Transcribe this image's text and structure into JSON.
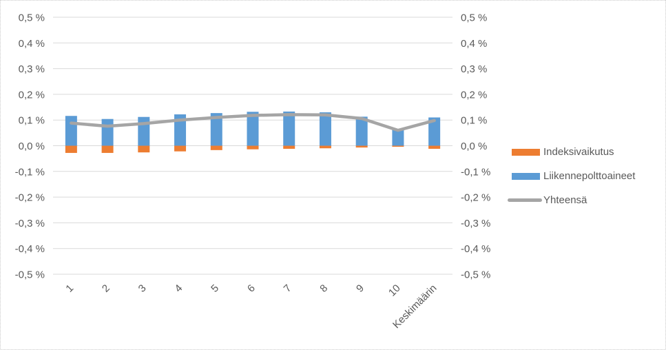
{
  "chart_data": {
    "type": "combo",
    "subtype": "stacked-bar-with-line",
    "title": "",
    "xlabel": "",
    "ylabel": "",
    "unit": "%",
    "number_format": "comma-decimal with space before %",
    "categories": [
      "1",
      "2",
      "3",
      "4",
      "5",
      "6",
      "7",
      "8",
      "9",
      "10",
      "Keskimäärin"
    ],
    "series": [
      {
        "name": "Indeksivaikutus",
        "type": "bar",
        "color": "#ED7D31",
        "values": [
          -0.028,
          -0.028,
          -0.026,
          -0.022,
          -0.017,
          -0.014,
          -0.012,
          -0.01,
          -0.007,
          -0.004,
          -0.012
        ]
      },
      {
        "name": "Liikennepolttoaineet",
        "type": "bar",
        "color": "#5B9BD5",
        "values": [
          0.116,
          0.104,
          0.112,
          0.122,
          0.127,
          0.132,
          0.133,
          0.13,
          0.113,
          0.064,
          0.11
        ]
      },
      {
        "name": "Yhteensä",
        "type": "line",
        "color": "#A5A5A5",
        "values": [
          0.088,
          0.076,
          0.086,
          0.1,
          0.11,
          0.118,
          0.121,
          0.12,
          0.106,
          0.06,
          0.098
        ]
      }
    ],
    "ylim": [
      -0.5,
      0.5
    ],
    "ytick_values": [
      0.5,
      0.4,
      0.3,
      0.2,
      0.1,
      0.0,
      -0.1,
      -0.2,
      -0.3,
      -0.4,
      -0.5
    ],
    "ytick_labels": [
      "0,5 %",
      "0,4 %",
      "0,3 %",
      "0,2 %",
      "0,1 %",
      "0,0 %",
      "-0,1 %",
      "-0,2 %",
      "-0,3 %",
      "-0,4 %",
      "-0,5 %"
    ],
    "grid": true,
    "gridline_color": "#D9D9D9",
    "axis_text_color": "#595959",
    "axes": {
      "left": true,
      "right": true
    },
    "xtick_rotation_deg": -45,
    "legend_position": "right"
  }
}
